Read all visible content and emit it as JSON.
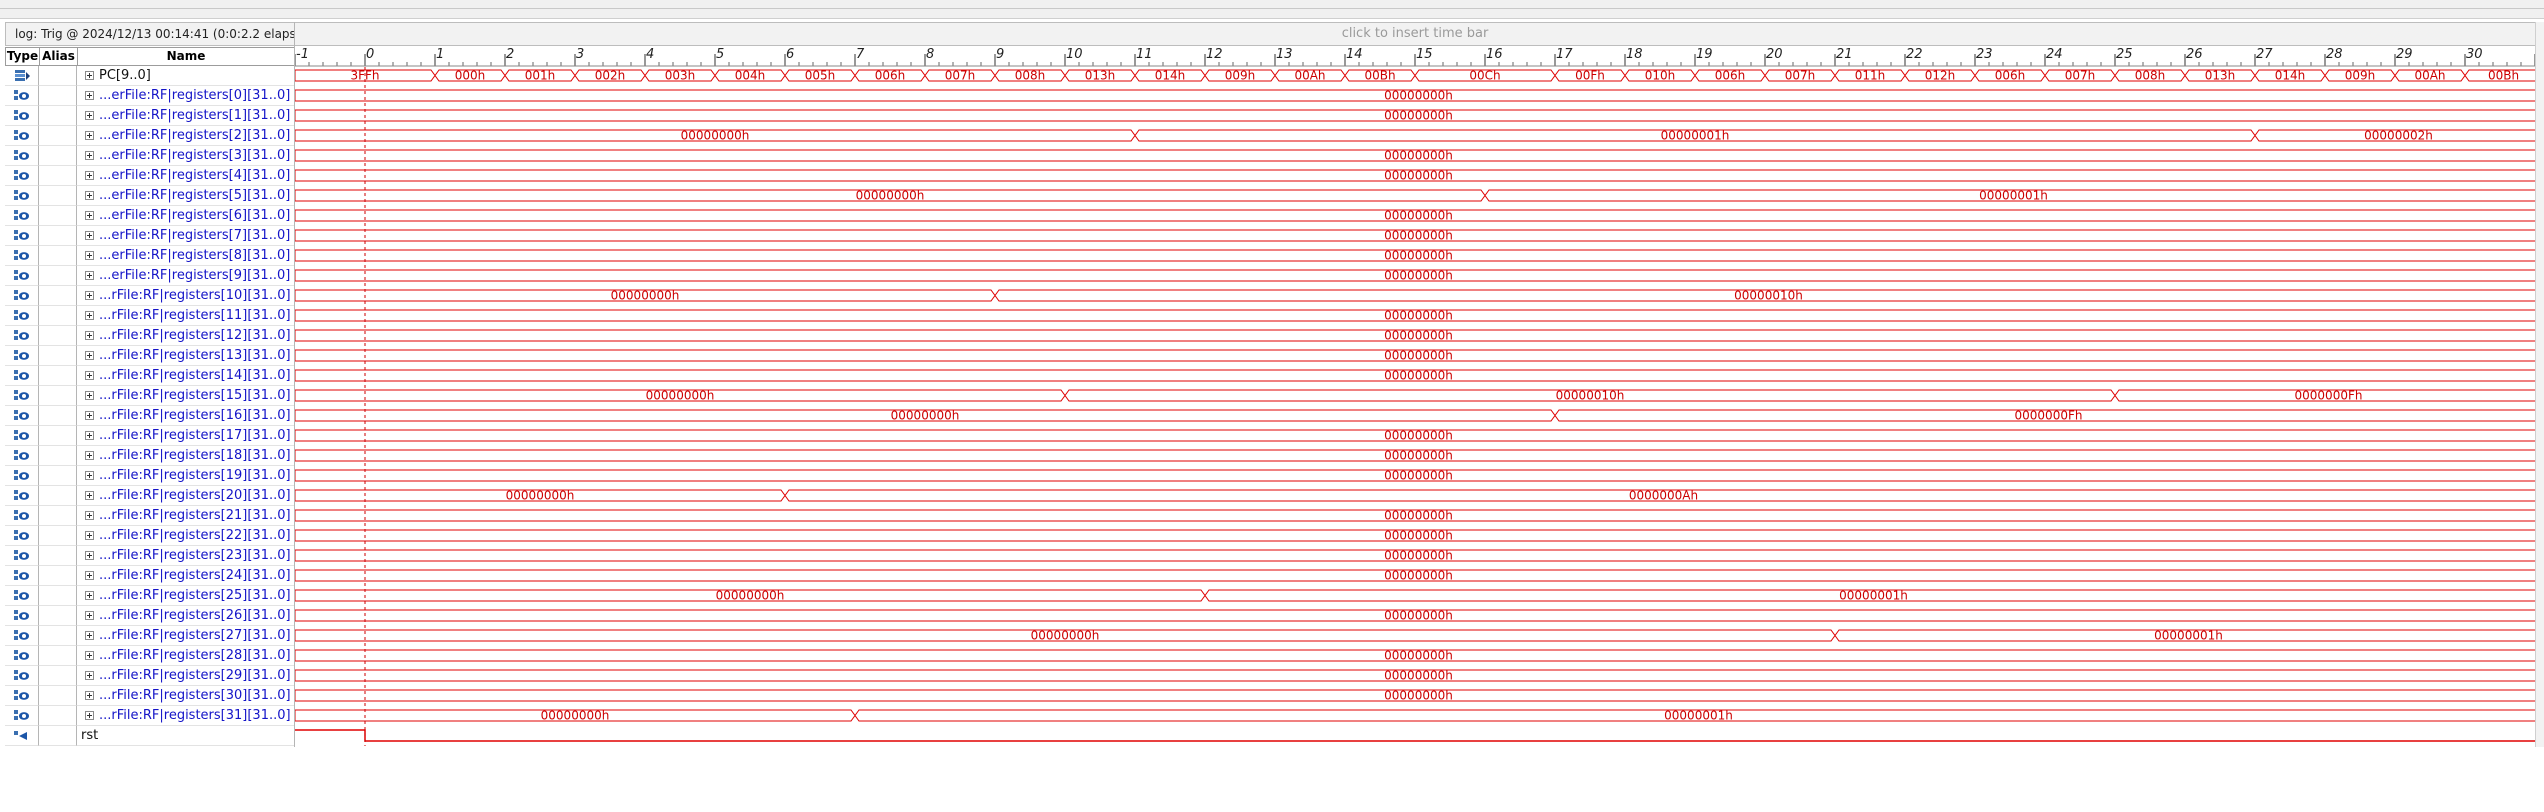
{
  "header": {
    "log_label": "log: Trig @ 2024/12/13 00:14:41 (0:0:2.2 elaps",
    "time_bar_hint": "click to insert time bar"
  },
  "columns": {
    "type": "Type",
    "alias": "Alias",
    "name": "Name"
  },
  "colors": {
    "wave": "#e00000",
    "bus_name": "#1414c8",
    "cursor": "#cc0000"
  },
  "timeline": {
    "ticks": [
      "-1",
      "0",
      "1",
      "2",
      "3",
      "4",
      "5",
      "6",
      "7",
      "8",
      "9",
      "10",
      "11",
      "12",
      "13",
      "14",
      "15",
      "16",
      "17",
      "18",
      "19",
      "20",
      "21",
      "22",
      "23",
      "24",
      "25",
      "26",
      "27",
      "28",
      "29",
      "30",
      "31"
    ],
    "start": -1,
    "end": 31.1,
    "cursor_at": 0
  },
  "signals": [
    {
      "name": "PC[9..0]",
      "icon": "bus-out-icon",
      "expandable": true,
      "name_style": "plain",
      "segments": [
        [
          -1,
          1,
          "3FFh"
        ],
        [
          1,
          2,
          "000h"
        ],
        [
          2,
          3,
          "001h"
        ],
        [
          3,
          4,
          "002h"
        ],
        [
          4,
          5,
          "003h"
        ],
        [
          5,
          6,
          "004h"
        ],
        [
          6,
          7,
          "005h"
        ],
        [
          7,
          8,
          "006h"
        ],
        [
          8,
          9,
          "007h"
        ],
        [
          9,
          10,
          "008h"
        ],
        [
          10,
          11,
          "013h"
        ],
        [
          11,
          12,
          "014h"
        ],
        [
          12,
          13,
          "009h"
        ],
        [
          13,
          14,
          "00Ah"
        ],
        [
          14,
          15,
          "00Bh"
        ],
        [
          15,
          17,
          "00Ch"
        ],
        [
          17,
          18,
          "00Fh"
        ],
        [
          18,
          19,
          "010h"
        ],
        [
          19,
          20,
          "006h"
        ],
        [
          20,
          21,
          "007h"
        ],
        [
          21,
          22,
          "011h"
        ],
        [
          22,
          23,
          "012h"
        ],
        [
          23,
          24,
          "006h"
        ],
        [
          24,
          25,
          "007h"
        ],
        [
          25,
          26,
          "008h"
        ],
        [
          26,
          27,
          "013h"
        ],
        [
          27,
          28,
          "014h"
        ],
        [
          28,
          29,
          "009h"
        ],
        [
          29,
          30,
          "00Ah"
        ],
        [
          30,
          31.1,
          "00Bh"
        ]
      ]
    },
    {
      "name": "...erFile:RF|registers[0][31..0]",
      "icon": "bus-in-icon",
      "expandable": true,
      "name_style": "bus",
      "segments": [
        [
          -1,
          31.1,
          "00000000h"
        ]
      ]
    },
    {
      "name": "...erFile:RF|registers[1][31..0]",
      "icon": "bus-in-icon",
      "expandable": true,
      "name_style": "bus",
      "segments": [
        [
          -1,
          31.1,
          "00000000h"
        ]
      ]
    },
    {
      "name": "...erFile:RF|registers[2][31..0]",
      "icon": "bus-in-icon",
      "expandable": true,
      "name_style": "bus",
      "segments": [
        [
          -1,
          11,
          "00000000h"
        ],
        [
          11,
          27,
          "00000001h"
        ],
        [
          27,
          31.1,
          "00000002h"
        ]
      ]
    },
    {
      "name": "...erFile:RF|registers[3][31..0]",
      "icon": "bus-in-icon",
      "expandable": true,
      "name_style": "bus",
      "segments": [
        [
          -1,
          31.1,
          "00000000h"
        ]
      ]
    },
    {
      "name": "...erFile:RF|registers[4][31..0]",
      "icon": "bus-in-icon",
      "expandable": true,
      "name_style": "bus",
      "segments": [
        [
          -1,
          31.1,
          "00000000h"
        ]
      ]
    },
    {
      "name": "...erFile:RF|registers[5][31..0]",
      "icon": "bus-in-icon",
      "expandable": true,
      "name_style": "bus",
      "segments": [
        [
          -1,
          16,
          "00000000h"
        ],
        [
          16,
          31.1,
          "00000001h"
        ]
      ]
    },
    {
      "name": "...erFile:RF|registers[6][31..0]",
      "icon": "bus-in-icon",
      "expandable": true,
      "name_style": "bus",
      "segments": [
        [
          -1,
          31.1,
          "00000000h"
        ]
      ]
    },
    {
      "name": "...erFile:RF|registers[7][31..0]",
      "icon": "bus-in-icon",
      "expandable": true,
      "name_style": "bus",
      "segments": [
        [
          -1,
          31.1,
          "00000000h"
        ]
      ]
    },
    {
      "name": "...erFile:RF|registers[8][31..0]",
      "icon": "bus-in-icon",
      "expandable": true,
      "name_style": "bus",
      "segments": [
        [
          -1,
          31.1,
          "00000000h"
        ]
      ]
    },
    {
      "name": "...erFile:RF|registers[9][31..0]",
      "icon": "bus-in-icon",
      "expandable": true,
      "name_style": "bus",
      "segments": [
        [
          -1,
          31.1,
          "00000000h"
        ]
      ]
    },
    {
      "name": "...rFile:RF|registers[10][31..0]",
      "icon": "bus-in-icon",
      "expandable": true,
      "name_style": "bus",
      "segments": [
        [
          -1,
          9,
          "00000000h"
        ],
        [
          9,
          31.1,
          "00000010h"
        ]
      ]
    },
    {
      "name": "...rFile:RF|registers[11][31..0]",
      "icon": "bus-in-icon",
      "expandable": true,
      "name_style": "bus",
      "segments": [
        [
          -1,
          31.1,
          "00000000h"
        ]
      ]
    },
    {
      "name": "...rFile:RF|registers[12][31..0]",
      "icon": "bus-in-icon",
      "expandable": true,
      "name_style": "bus",
      "segments": [
        [
          -1,
          31.1,
          "00000000h"
        ]
      ]
    },
    {
      "name": "...rFile:RF|registers[13][31..0]",
      "icon": "bus-in-icon",
      "expandable": true,
      "name_style": "bus",
      "segments": [
        [
          -1,
          31.1,
          "00000000h"
        ]
      ]
    },
    {
      "name": "...rFile:RF|registers[14][31..0]",
      "icon": "bus-in-icon",
      "expandable": true,
      "name_style": "bus",
      "segments": [
        [
          -1,
          31.1,
          "00000000h"
        ]
      ]
    },
    {
      "name": "...rFile:RF|registers[15][31..0]",
      "icon": "bus-in-icon",
      "expandable": true,
      "name_style": "bus",
      "segments": [
        [
          -1,
          10,
          "00000000h"
        ],
        [
          10,
          25,
          "00000010h"
        ],
        [
          25,
          31.1,
          "0000000Fh"
        ]
      ]
    },
    {
      "name": "...rFile:RF|registers[16][31..0]",
      "icon": "bus-in-icon",
      "expandable": true,
      "name_style": "bus",
      "segments": [
        [
          -1,
          17,
          "00000000h"
        ],
        [
          17,
          31.1,
          "0000000Fh"
        ]
      ]
    },
    {
      "name": "...rFile:RF|registers[17][31..0]",
      "icon": "bus-in-icon",
      "expandable": true,
      "name_style": "bus",
      "segments": [
        [
          -1,
          31.1,
          "00000000h"
        ]
      ]
    },
    {
      "name": "...rFile:RF|registers[18][31..0]",
      "icon": "bus-in-icon",
      "expandable": true,
      "name_style": "bus",
      "segments": [
        [
          -1,
          31.1,
          "00000000h"
        ]
      ]
    },
    {
      "name": "...rFile:RF|registers[19][31..0]",
      "icon": "bus-in-icon",
      "expandable": true,
      "name_style": "bus",
      "segments": [
        [
          -1,
          31.1,
          "00000000h"
        ]
      ]
    },
    {
      "name": "...rFile:RF|registers[20][31..0]",
      "icon": "bus-in-icon",
      "expandable": true,
      "name_style": "bus",
      "segments": [
        [
          -1,
          6,
          "00000000h"
        ],
        [
          6,
          31.1,
          "0000000Ah"
        ]
      ]
    },
    {
      "name": "...rFile:RF|registers[21][31..0]",
      "icon": "bus-in-icon",
      "expandable": true,
      "name_style": "bus",
      "segments": [
        [
          -1,
          31.1,
          "00000000h"
        ]
      ]
    },
    {
      "name": "...rFile:RF|registers[22][31..0]",
      "icon": "bus-in-icon",
      "expandable": true,
      "name_style": "bus",
      "segments": [
        [
          -1,
          31.1,
          "00000000h"
        ]
      ]
    },
    {
      "name": "...rFile:RF|registers[23][31..0]",
      "icon": "bus-in-icon",
      "expandable": true,
      "name_style": "bus",
      "segments": [
        [
          -1,
          31.1,
          "00000000h"
        ]
      ]
    },
    {
      "name": "...rFile:RF|registers[24][31..0]",
      "icon": "bus-in-icon",
      "expandable": true,
      "name_style": "bus",
      "segments": [
        [
          -1,
          31.1,
          "00000000h"
        ]
      ]
    },
    {
      "name": "...rFile:RF|registers[25][31..0]",
      "icon": "bus-in-icon",
      "expandable": true,
      "name_style": "bus",
      "segments": [
        [
          -1,
          12,
          "00000000h"
        ],
        [
          12,
          31.1,
          "00000001h"
        ]
      ]
    },
    {
      "name": "...rFile:RF|registers[26][31..0]",
      "icon": "bus-in-icon",
      "expandable": true,
      "name_style": "bus",
      "segments": [
        [
          -1,
          31.1,
          "00000000h"
        ]
      ]
    },
    {
      "name": "...rFile:RF|registers[27][31..0]",
      "icon": "bus-in-icon",
      "expandable": true,
      "name_style": "bus",
      "segments": [
        [
          -1,
          21,
          "00000000h"
        ],
        [
          21,
          31.1,
          "00000001h"
        ]
      ]
    },
    {
      "name": "...rFile:RF|registers[28][31..0]",
      "icon": "bus-in-icon",
      "expandable": true,
      "name_style": "bus",
      "segments": [
        [
          -1,
          31.1,
          "00000000h"
        ]
      ]
    },
    {
      "name": "...rFile:RF|registers[29][31..0]",
      "icon": "bus-in-icon",
      "expandable": true,
      "name_style": "bus",
      "segments": [
        [
          -1,
          31.1,
          "00000000h"
        ]
      ]
    },
    {
      "name": "...rFile:RF|registers[30][31..0]",
      "icon": "bus-in-icon",
      "expandable": true,
      "name_style": "bus",
      "segments": [
        [
          -1,
          31.1,
          "00000000h"
        ]
      ]
    },
    {
      "name": "...rFile:RF|registers[31][31..0]",
      "icon": "bus-in-icon",
      "expandable": true,
      "name_style": "bus",
      "segments": [
        [
          -1,
          7,
          "00000000h"
        ],
        [
          7,
          31.1,
          "00000001h"
        ]
      ]
    },
    {
      "name": "rst",
      "icon": "single-bit-icon",
      "expandable": false,
      "name_style": "rst",
      "kind": "bit",
      "levels": [
        [
          -1,
          0,
          1
        ],
        [
          0,
          31.1,
          0
        ]
      ]
    }
  ]
}
